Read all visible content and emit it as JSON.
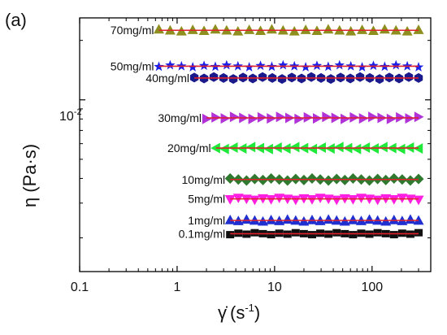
{
  "panel_label": "(a)",
  "axes": {
    "ylabel_main": "η",
    "ylabel_paren": "(Pa·s)",
    "xlabel_symbol": "γ̇",
    "xlabel_open": "(s",
    "xlabel_exp": "-1",
    "xlabel_close": ")",
    "y_tick_base": "10",
    "y_tick_exp": "-2"
  },
  "chart_data": {
    "type": "scatter",
    "title": "",
    "xscale": "log",
    "yscale": "log",
    "xlim": [
      0.1,
      400
    ],
    "ylim": [
      0.00135,
      0.026
    ],
    "x_ticks": [
      0.1,
      1,
      10,
      100
    ],
    "x_tick_labels": [
      "0.1",
      "1",
      "10",
      "100"
    ],
    "y_ticks": [
      0.01
    ],
    "grid": false,
    "legend": "inline labels next to each series",
    "series": [
      {
        "name": "70mg/ml",
        "x_range": [
          0.65,
          300
        ],
        "y": 0.0225,
        "marker": "triangle-up",
        "color": "#8f8f1f",
        "fit_color": "#e0202a"
      },
      {
        "name": "50mg/ml",
        "x_range": [
          0.65,
          300
        ],
        "y": 0.0148,
        "marker": "star",
        "color": "#1b20e8",
        "fit_color": "#e0202a"
      },
      {
        "name": "40mg/ml",
        "x_range": [
          1.5,
          300
        ],
        "y": 0.0129,
        "marker": "hexagon",
        "color": "#1a1a8c",
        "fit_color": "#e0202a"
      },
      {
        "name": "30mg/ml",
        "x_range": [
          2.0,
          300
        ],
        "y": 0.0081,
        "marker": "triangle-right",
        "color": "#b032d8",
        "fit_color": "#e0202a"
      },
      {
        "name": "20mg/ml",
        "x_range": [
          2.5,
          300
        ],
        "y": 0.0057,
        "marker": "triangle-left",
        "color": "#1ee83a",
        "fit_color": "#e0202a"
      },
      {
        "name": "10mg/ml",
        "x_range": [
          3.5,
          300
        ],
        "y": 0.00395,
        "marker": "diamond",
        "color": "#2f7a2f",
        "fit_color": "#e0202a"
      },
      {
        "name": "5mg/ml",
        "x_range": [
          3.5,
          300
        ],
        "y": 0.00315,
        "marker": "triangle-down",
        "color": "#ff1fe0",
        "fit_color": "#e0202a"
      },
      {
        "name": "1mg/ml",
        "x_range": [
          3.5,
          300
        ],
        "y": 0.00245,
        "marker": "triangle-up",
        "color": "#2030d0",
        "fit_color": "#e0202a"
      },
      {
        "name": "0.1mg/ml",
        "x_range": [
          3.5,
          300
        ],
        "y": 0.0021,
        "marker": "square",
        "color": "#101010",
        "fit_color": "#e0202a"
      }
    ]
  }
}
